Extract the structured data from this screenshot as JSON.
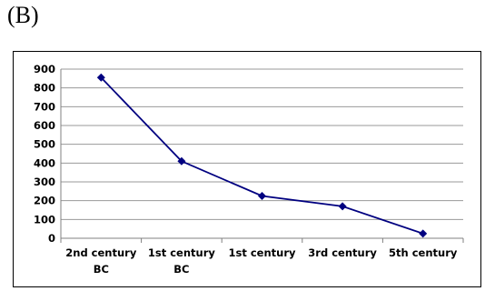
{
  "panel_label": "(B)",
  "chart_data": {
    "type": "line",
    "categories": [
      [
        "2nd century",
        "BC"
      ],
      [
        "1st century",
        "BC"
      ],
      [
        "1st century"
      ],
      [
        "3rd century"
      ],
      [
        "5th century"
      ]
    ],
    "series": [
      {
        "values": [
          855,
          410,
          225,
          170,
          25
        ],
        "color": "#000080"
      }
    ],
    "ylim": [
      0,
      900
    ],
    "yticks": [
      0,
      100,
      200,
      300,
      400,
      500,
      600,
      700,
      800,
      900
    ],
    "grid": true,
    "gridline_color": "#999999",
    "marker": "diamond"
  }
}
